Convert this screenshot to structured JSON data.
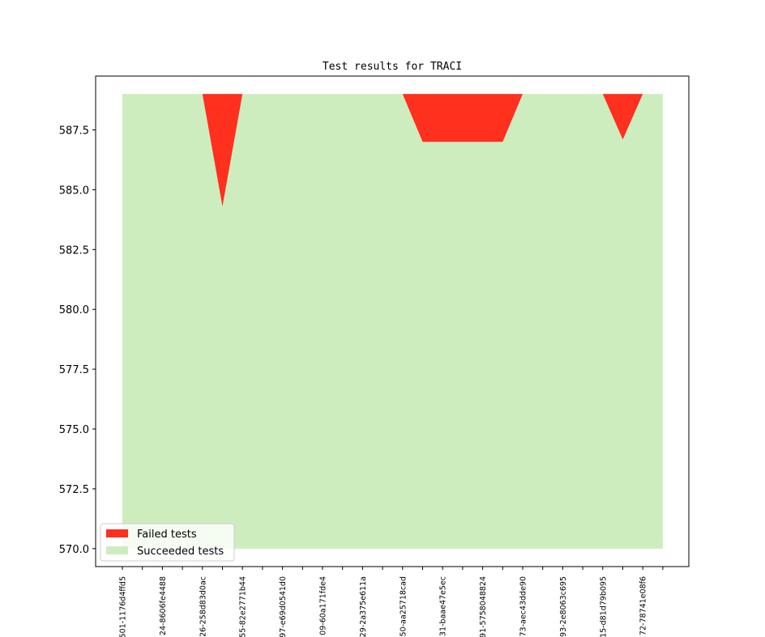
{
  "chart_data": {
    "type": "area",
    "title": "Test results for TRACI",
    "xlabel": "",
    "ylabel": "",
    "ylim": [
      569.25,
      589.75
    ],
    "yticks": [
      570.0,
      572.5,
      575.0,
      577.5,
      580.0,
      582.5,
      585.0,
      587.5
    ],
    "ytick_labels": [
      "570.0",
      "572.5",
      "575.0",
      "577.5",
      "580.0",
      "582.5",
      "585.0",
      "587.5"
    ],
    "x_count": 28,
    "xtick_labels": [
      "501-1176d4ffd5",
      "",
      "24-8606fe4488",
      "",
      "26-258d83d0ac",
      "",
      "55-82e2771b44",
      "",
      "97-e69d0541d0",
      "",
      "09-60a171fde4",
      "",
      "29-2a375e611a",
      "",
      "50-aa25718cad",
      "",
      "31-baae47e5ec",
      "",
      "91-5758048824",
      "",
      "73-aec43dde90",
      "",
      "93-2e8063c695",
      "",
      "15-d81d79b095",
      "",
      "72-78741e08f6",
      ""
    ],
    "series": [
      {
        "name": "Succeeded tests",
        "color": "#ceedbf",
        "values": [
          589,
          589,
          589,
          589,
          589,
          584.3,
          589,
          589,
          589,
          589,
          589,
          589,
          589,
          589,
          589,
          587,
          587,
          587,
          587,
          587,
          589,
          589,
          589,
          589,
          589,
          587.1,
          589,
          589
        ]
      },
      {
        "name": "Failed tests",
        "color": "#ff301e",
        "values": [
          0,
          0,
          0,
          0,
          0,
          4.7,
          0,
          0,
          0,
          0,
          0,
          0,
          0,
          0,
          0,
          2,
          2,
          2,
          2,
          2,
          0,
          0,
          0,
          0,
          0,
          1.9,
          0,
          0
        ]
      }
    ],
    "total": 589,
    "baseline": 570,
    "legend_position": "lower-left",
    "legend": [
      "Failed tests",
      "Succeeded tests"
    ],
    "grid": false
  }
}
